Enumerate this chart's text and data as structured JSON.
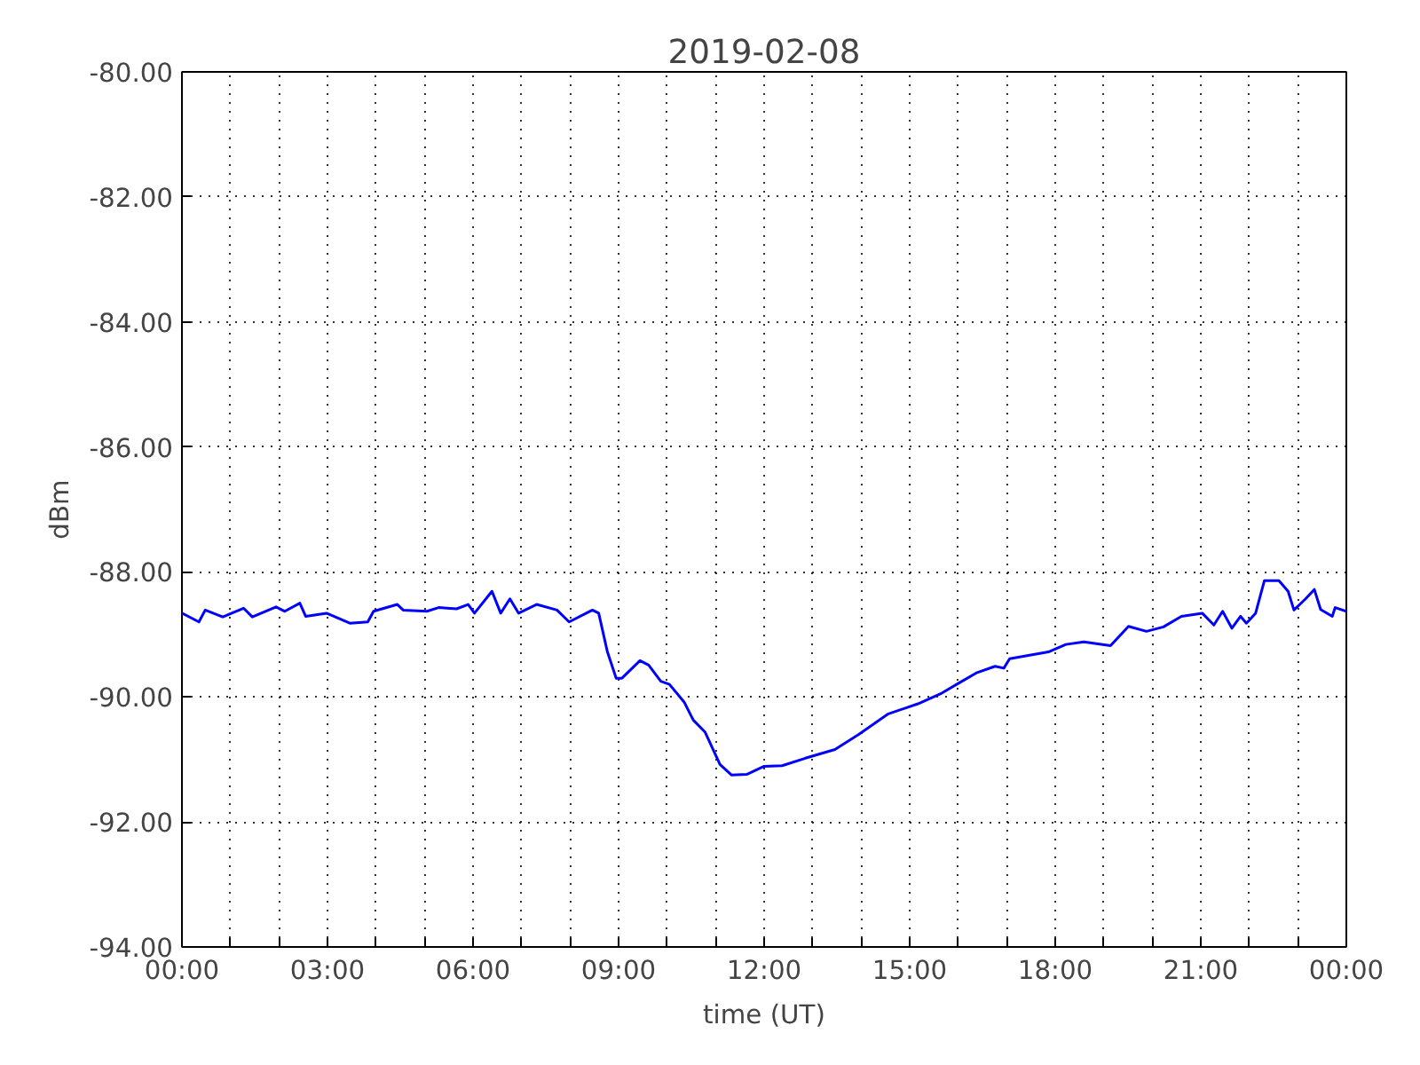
{
  "chart_data": {
    "type": "line",
    "title": "2019-02-08",
    "xlabel": "time (UT)",
    "ylabel": "dBm",
    "x": [
      0,
      0.35,
      0.48,
      0.84,
      1.27,
      1.45,
      1.94,
      2.12,
      2.43,
      2.55,
      2.98,
      3.46,
      3.83,
      3.95,
      4.44,
      4.56,
      5.05,
      5.29,
      5.66,
      5.9,
      6.03,
      6.39,
      6.57,
      6.76,
      6.94,
      7.31,
      7.73,
      7.98,
      8.46,
      8.59,
      8.77,
      8.95,
      9.07,
      9.44,
      9.62,
      9.87,
      10.05,
      10.35,
      10.54,
      10.78,
      11.09,
      11.33,
      11.64,
      12.0,
      12.37,
      12.85,
      13.46,
      13.95,
      14.56,
      15.17,
      15.66,
      16.03,
      16.39,
      16.76,
      16.94,
      17.06,
      17.86,
      18.22,
      18.59,
      19.14,
      19.51,
      19.88,
      20.23,
      20.6,
      21.03,
      21.27,
      21.45,
      21.64,
      21.82,
      21.94,
      22.13,
      22.31,
      22.61,
      22.8,
      22.92,
      23.16,
      23.34,
      23.47,
      23.71,
      23.77,
      24
    ],
    "series": [
      {
        "color": "#0000ff",
        "values": [
          -88.66,
          -88.8,
          -88.61,
          -88.72,
          -88.58,
          -88.72,
          -88.56,
          -88.63,
          -88.5,
          -88.71,
          -88.66,
          -88.82,
          -88.8,
          -88.63,
          -88.52,
          -88.61,
          -88.63,
          -88.57,
          -88.59,
          -88.52,
          -88.66,
          -88.31,
          -88.66,
          -88.43,
          -88.66,
          -88.52,
          -88.61,
          -88.8,
          -88.61,
          -88.66,
          -89.28,
          -89.7,
          -89.7,
          -89.42,
          -89.49,
          -89.75,
          -89.8,
          -90.08,
          -90.37,
          -90.56,
          -91.08,
          -91.25,
          -91.24,
          -91.11,
          -91.1,
          -90.98,
          -90.84,
          -90.6,
          -90.27,
          -90.11,
          -89.94,
          -89.77,
          -89.61,
          -89.51,
          -89.54,
          -89.39,
          -89.28,
          -89.16,
          -89.12,
          -89.18,
          -88.87,
          -88.95,
          -88.88,
          -88.71,
          -88.66,
          -88.85,
          -88.63,
          -88.9,
          -88.71,
          -88.82,
          -88.66,
          -88.14,
          -88.14,
          -88.31,
          -88.61,
          -88.43,
          -88.28,
          -88.6,
          -88.71,
          -88.57,
          -88.63
        ]
      }
    ],
    "xlim": [
      0,
      24
    ],
    "xticks": [
      {
        "value": 0,
        "label": "00:00"
      },
      {
        "value": 1,
        "label": null
      },
      {
        "value": 2,
        "label": null
      },
      {
        "value": 3,
        "label": "03:00"
      },
      {
        "value": 4,
        "label": null
      },
      {
        "value": 5,
        "label": null
      },
      {
        "value": 6,
        "label": "06:00"
      },
      {
        "value": 7,
        "label": null
      },
      {
        "value": 8,
        "label": null
      },
      {
        "value": 9,
        "label": "09:00"
      },
      {
        "value": 10,
        "label": null
      },
      {
        "value": 11,
        "label": null
      },
      {
        "value": 12,
        "label": "12:00"
      },
      {
        "value": 13,
        "label": null
      },
      {
        "value": 14,
        "label": null
      },
      {
        "value": 15,
        "label": "15:00"
      },
      {
        "value": 16,
        "label": null
      },
      {
        "value": 17,
        "label": null
      },
      {
        "value": 18,
        "label": "18:00"
      },
      {
        "value": 19,
        "label": null
      },
      {
        "value": 20,
        "label": null
      },
      {
        "value": 21,
        "label": "21:00"
      },
      {
        "value": 22,
        "label": null
      },
      {
        "value": 23,
        "label": null
      },
      {
        "value": 24,
        "label": "00:00"
      }
    ],
    "ylim": [
      -94,
      -80
    ],
    "yticks": [
      {
        "value": -94,
        "label": "-94.00"
      },
      {
        "value": -92,
        "label": "-92.00"
      },
      {
        "value": -90,
        "label": "-90.00"
      },
      {
        "value": -88,
        "label": "-88.00"
      },
      {
        "value": -86,
        "label": "-86.00"
      },
      {
        "value": -84,
        "label": "-84.00"
      },
      {
        "value": -82,
        "label": "-82.00"
      },
      {
        "value": -80,
        "label": "-80.00"
      }
    ],
    "grid": true,
    "marker": "none",
    "line_style": "solid"
  }
}
